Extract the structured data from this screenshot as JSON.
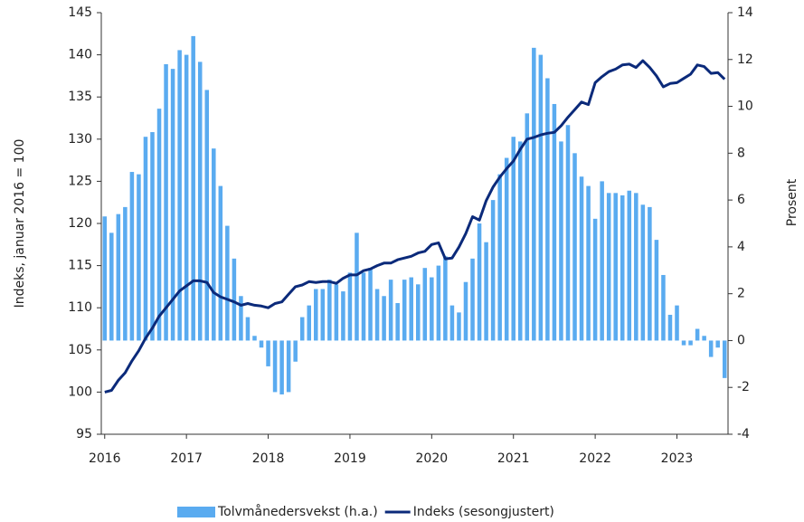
{
  "chart_data": {
    "type": "bar-line",
    "y_label": "Indeks, januar 2016 = 100",
    "y2_label": "Prosent",
    "categories": [
      "2016",
      null,
      null,
      null,
      null,
      null,
      null,
      null,
      null,
      null,
      null,
      null,
      "2017",
      null,
      null,
      null,
      null,
      null,
      null,
      null,
      null,
      null,
      null,
      null,
      "2018",
      null,
      null,
      null,
      null,
      null,
      null,
      null,
      null,
      null,
      null,
      null,
      "2019",
      null,
      null,
      null,
      null,
      null,
      null,
      null,
      null,
      null,
      null,
      null,
      "2020",
      null,
      null,
      null,
      null,
      null,
      null,
      null,
      null,
      null,
      null,
      null,
      "2021",
      null,
      null,
      null,
      null,
      null,
      null,
      null,
      null,
      null,
      null,
      null,
      "2022",
      null,
      null,
      null,
      null,
      null,
      null,
      null,
      null,
      null,
      null,
      null,
      "2023",
      null,
      null,
      null,
      null,
      null,
      null,
      null
    ],
    "series": [
      {
        "name": "Tolvmånedersvekst (h.a.)",
        "kind": "bar",
        "axis": "y2",
        "color": "#5aabf0",
        "values": [
          5.3,
          4.6,
          5.4,
          5.7,
          7.2,
          7.1,
          8.7,
          8.9,
          9.9,
          11.8,
          11.6,
          12.4,
          12.2,
          13.0,
          11.9,
          10.7,
          8.2,
          6.6,
          4.9,
          3.5,
          1.9,
          1.0,
          0.2,
          -0.3,
          -1.1,
          -2.2,
          -2.3,
          -2.2,
          -0.9,
          1.0,
          1.5,
          2.2,
          2.2,
          2.6,
          2.4,
          2.1,
          2.9,
          4.6,
          2.9,
          3.1,
          2.2,
          1.9,
          2.6,
          1.6,
          2.6,
          2.7,
          2.4,
          3.1,
          2.7,
          3.2,
          3.6,
          1.5,
          1.2,
          2.5,
          3.5,
          5.0,
          4.2,
          6.0,
          7.1,
          7.8,
          8.7,
          8.5,
          9.7,
          12.5,
          12.2,
          11.2,
          10.1,
          8.5,
          9.2,
          8.0,
          7.0,
          6.6,
          5.2,
          6.8,
          6.3,
          6.3,
          6.2,
          6.4,
          6.3,
          5.8,
          5.7,
          4.3,
          2.8,
          1.1,
          1.5,
          -0.2,
          -0.2,
          0.5,
          0.2,
          -0.7,
          -0.3,
          -1.6
        ]
      },
      {
        "name": "Indeks (sesongjustert)",
        "kind": "line",
        "color": "#0b2a7a",
        "values": [
          100.0,
          100.2,
          101.4,
          102.3,
          103.7,
          104.9,
          106.4,
          107.6,
          109.0,
          110.0,
          111.0,
          112.0,
          112.6,
          113.2,
          113.2,
          113.0,
          111.8,
          111.3,
          111.0,
          110.7,
          110.3,
          110.5,
          110.3,
          110.2,
          110.0,
          110.5,
          110.7,
          111.6,
          112.5,
          112.7,
          113.1,
          113.0,
          113.1,
          113.1,
          112.9,
          113.5,
          113.9,
          113.9,
          114.4,
          114.6,
          115.0,
          115.3,
          115.3,
          115.7,
          115.9,
          116.1,
          116.5,
          116.7,
          117.5,
          117.7,
          115.8,
          115.9,
          117.2,
          118.8,
          120.8,
          120.4,
          122.7,
          124.3,
          125.5,
          126.5,
          127.4,
          128.8,
          130.0,
          130.2,
          130.5,
          130.7,
          130.8,
          131.6,
          132.6,
          133.5,
          134.4,
          134.1,
          136.7,
          137.4,
          138.0,
          138.3,
          138.8,
          138.9,
          138.5,
          139.3,
          138.5,
          137.5,
          136.2,
          136.6,
          136.7,
          137.2,
          137.7,
          138.8,
          138.6,
          137.8,
          137.9,
          137.1
        ]
      }
    ],
    "ylim": [
      95,
      145
    ],
    "yticks": [
      95,
      100,
      105,
      110,
      115,
      120,
      125,
      130,
      135,
      140,
      145
    ],
    "y2lim": [
      -4,
      14
    ],
    "y2ticks": [
      -4,
      -2,
      0,
      2,
      4,
      6,
      8,
      10,
      12,
      14
    ],
    "legend": "bottom"
  }
}
